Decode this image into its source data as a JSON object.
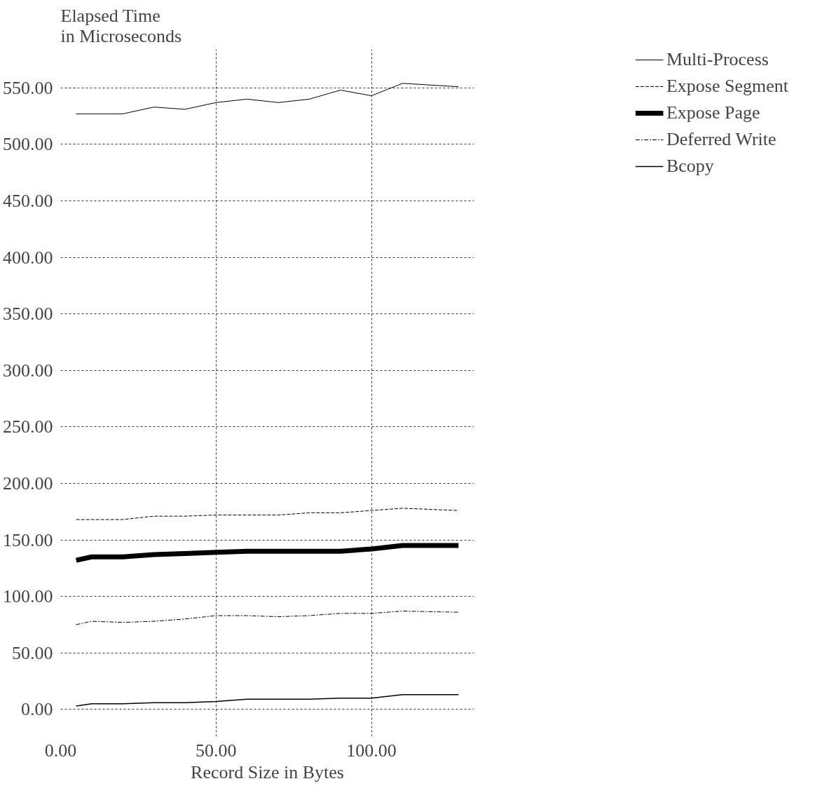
{
  "chart_data": {
    "type": "line",
    "ylabel": "Elapsed Time\nin Microseconds",
    "xlabel": "Record Size in Bytes",
    "x": [
      5,
      10,
      20,
      30,
      40,
      50,
      60,
      70,
      80,
      90,
      100,
      110,
      128
    ],
    "series": [
      {
        "name": "Multi-Process",
        "color": "#000000",
        "line_style": "solid",
        "values": [
          527,
          527,
          527,
          533,
          531,
          537,
          540,
          537,
          540,
          548,
          543,
          554,
          551
        ]
      },
      {
        "name": "Expose Segment",
        "color": "#000000",
        "line_style": "dashed",
        "values": [
          168,
          168,
          168,
          171,
          171,
          172,
          172,
          172,
          174,
          174,
          176,
          178,
          176
        ]
      },
      {
        "name": "Expose Page",
        "color": "#000000",
        "line_style": "solid",
        "values": [
          132,
          135,
          135,
          137,
          138,
          139,
          140,
          140,
          140,
          140,
          142,
          145,
          145
        ]
      },
      {
        "name": "Deferred Write",
        "color": "#000000",
        "line_style": "dashdot",
        "values": [
          75,
          78,
          77,
          78,
          80,
          83,
          83,
          82,
          83,
          85,
          85,
          87,
          86
        ]
      },
      {
        "name": "Bcopy",
        "color": "#000000",
        "line_style": "solid",
        "values": [
          3,
          5,
          5,
          6,
          6,
          7,
          9,
          9,
          9,
          10,
          10,
          13,
          13
        ]
      }
    ],
    "xlim": [
      0,
      133
    ],
    "ylim": [
      -24,
      584
    ],
    "xticks": [
      {
        "value": 0,
        "label": "0.00"
      },
      {
        "value": 50,
        "label": "50.00"
      },
      {
        "value": 100,
        "label": "100.00"
      }
    ],
    "yticks": [
      {
        "value": 0,
        "label": "0.00"
      },
      {
        "value": 50,
        "label": "50.00"
      },
      {
        "value": 100,
        "label": "100.00"
      },
      {
        "value": 150,
        "label": "150.00"
      },
      {
        "value": 200,
        "label": "200.00"
      },
      {
        "value": 250,
        "label": "250.00"
      },
      {
        "value": 300,
        "label": "300.00"
      },
      {
        "value": 350,
        "label": "350.00"
      },
      {
        "value": 400,
        "label": "400.00"
      },
      {
        "value": 450,
        "label": "450.00"
      },
      {
        "value": 500,
        "label": "500.00"
      },
      {
        "value": 550,
        "label": "550.00"
      }
    ],
    "grid": true,
    "legend": "top right",
    "marker": "none"
  }
}
